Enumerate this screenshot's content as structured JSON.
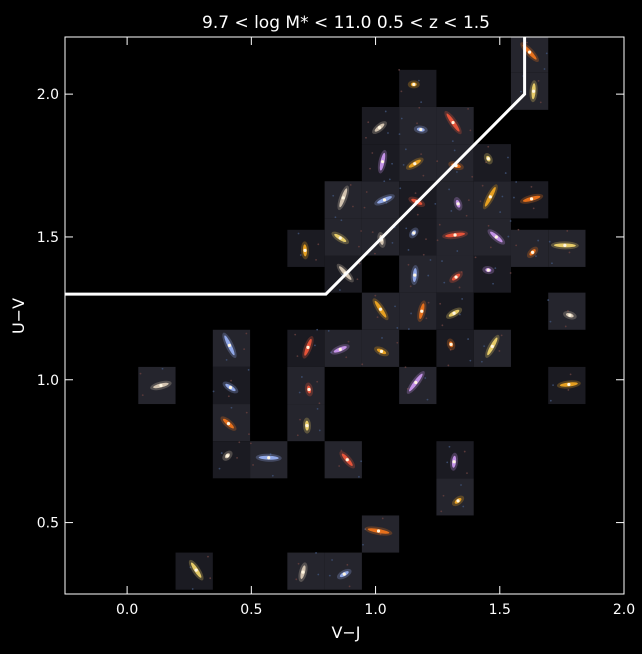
{
  "chart_data": {
    "type": "scatter",
    "title": "9.7 < log M* < 11.0     0.5 < z < 1.5",
    "xlabel": "V−J",
    "ylabel": "U−V",
    "xlim": [
      -0.25,
      2.0
    ],
    "ylim": [
      0.25,
      2.2
    ],
    "xticks": [
      "0.0",
      "0.5",
      "1.0",
      "1.5",
      "2.0"
    ],
    "xtick_values": [
      0.0,
      0.5,
      1.0,
      1.5,
      2.0
    ],
    "yticks": [
      "0.5",
      "1.0",
      "1.5",
      "2.0"
    ],
    "ytick_values": [
      0.5,
      1.0,
      1.5,
      2.0
    ],
    "grid": false,
    "background": "#000000",
    "foreground": "#ffffff",
    "boundary_line": {
      "color": "#ffffff",
      "x": [
        -0.25,
        0.8,
        1.6,
        1.6
      ],
      "y": [
        1.3,
        1.3,
        2.0,
        2.2
      ]
    },
    "cell_size": [
      0.15,
      0.13
    ],
    "stamp_colors": [
      "#ffb020",
      "#ff7a1a",
      "#ffe070",
      "#e8d6c0",
      "#9fb8ff",
      "#ff5a3c",
      "#d8a0ff"
    ],
    "stamps": [
      {
        "x": 1.17,
        "y": 2.02
      },
      {
        "x": 1.62,
        "y": 2.14
      },
      {
        "x": 1.62,
        "y": 2.01
      },
      {
        "x": 1.02,
        "y": 1.89
      },
      {
        "x": 1.17,
        "y": 1.89
      },
      {
        "x": 1.32,
        "y": 1.89
      },
      {
        "x": 1.02,
        "y": 1.76
      },
      {
        "x": 1.17,
        "y": 1.76
      },
      {
        "x": 1.32,
        "y": 1.76
      },
      {
        "x": 1.47,
        "y": 1.76
      },
      {
        "x": 0.87,
        "y": 1.63
      },
      {
        "x": 1.02,
        "y": 1.63
      },
      {
        "x": 1.17,
        "y": 1.63
      },
      {
        "x": 1.32,
        "y": 1.63
      },
      {
        "x": 1.47,
        "y": 1.63
      },
      {
        "x": 1.62,
        "y": 1.63
      },
      {
        "x": 0.87,
        "y": 1.5
      },
      {
        "x": 1.02,
        "y": 1.5
      },
      {
        "x": 1.17,
        "y": 1.5
      },
      {
        "x": 1.32,
        "y": 1.5
      },
      {
        "x": 1.47,
        "y": 1.5
      },
      {
        "x": 0.72,
        "y": 1.46
      },
      {
        "x": 1.62,
        "y": 1.46
      },
      {
        "x": 1.77,
        "y": 1.46
      },
      {
        "x": 0.87,
        "y": 1.37
      },
      {
        "x": 1.17,
        "y": 1.37
      },
      {
        "x": 1.32,
        "y": 1.37
      },
      {
        "x": 1.47,
        "y": 1.37
      },
      {
        "x": 1.02,
        "y": 1.24
      },
      {
        "x": 1.17,
        "y": 1.24
      },
      {
        "x": 1.32,
        "y": 1.24
      },
      {
        "x": 1.77,
        "y": 1.24
      },
      {
        "x": 0.42,
        "y": 1.11
      },
      {
        "x": 0.72,
        "y": 1.11
      },
      {
        "x": 0.87,
        "y": 1.11
      },
      {
        "x": 1.02,
        "y": 1.11
      },
      {
        "x": 1.32,
        "y": 1.11
      },
      {
        "x": 1.47,
        "y": 1.11
      },
      {
        "x": 0.12,
        "y": 0.98
      },
      {
        "x": 0.42,
        "y": 0.98
      },
      {
        "x": 0.72,
        "y": 0.98
      },
      {
        "x": 1.17,
        "y": 0.98
      },
      {
        "x": 1.77,
        "y": 0.98
      },
      {
        "x": 0.42,
        "y": 0.85
      },
      {
        "x": 0.72,
        "y": 0.85
      },
      {
        "x": 0.42,
        "y": 0.72
      },
      {
        "x": 0.57,
        "y": 0.72
      },
      {
        "x": 0.87,
        "y": 0.72
      },
      {
        "x": 1.32,
        "y": 0.72
      },
      {
        "x": 1.32,
        "y": 0.59
      },
      {
        "x": 1.02,
        "y": 0.46
      },
      {
        "x": 0.27,
        "y": 0.33
      },
      {
        "x": 0.72,
        "y": 0.33
      },
      {
        "x": 0.87,
        "y": 0.33
      }
    ]
  }
}
